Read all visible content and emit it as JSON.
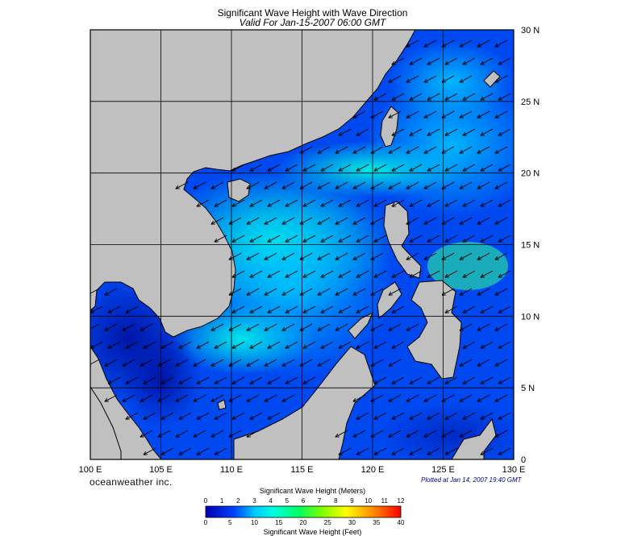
{
  "title": "Significant Wave Height with Wave Direction",
  "subtitle": "Valid For Jan-15-2007 06:00 GMT",
  "brand": "oceanweather inc.",
  "plotted": "Plotted at Jan 14, 2007 19:40 GMT",
  "map": {
    "lon_range": [
      100,
      130
    ],
    "lat_range": [
      0,
      30
    ],
    "lon_labels": [
      "100 E",
      "105 E",
      "110 E",
      "115 E",
      "120 E",
      "125 E",
      "130 E"
    ],
    "lat_labels": [
      "0",
      "5 N",
      "10 N",
      "15 N",
      "20 N",
      "25 N",
      "30 N"
    ],
    "grid": true,
    "land_color": "#c0c0c0",
    "arrow_direction": "toward southwest"
  },
  "colorbar": {
    "title_top": "Significant Wave Height (Meters)",
    "title_bottom": "Significant Wave Height (Feet)",
    "meters": [
      "0",
      "1",
      "2",
      "3",
      "4",
      "5",
      "6",
      "7",
      "8",
      "9",
      "10",
      "11",
      "12"
    ],
    "feet": [
      "0",
      "5",
      "10",
      "15",
      "20",
      "25",
      "30",
      "35",
      "40"
    ],
    "colors": [
      "#0000b0",
      "#0022ee",
      "#0077ff",
      "#00c8ff",
      "#00ffe0",
      "#00ff70",
      "#40ff00",
      "#b0ff00",
      "#ffff00",
      "#ffb000",
      "#ff6000",
      "#ff0000"
    ]
  }
}
